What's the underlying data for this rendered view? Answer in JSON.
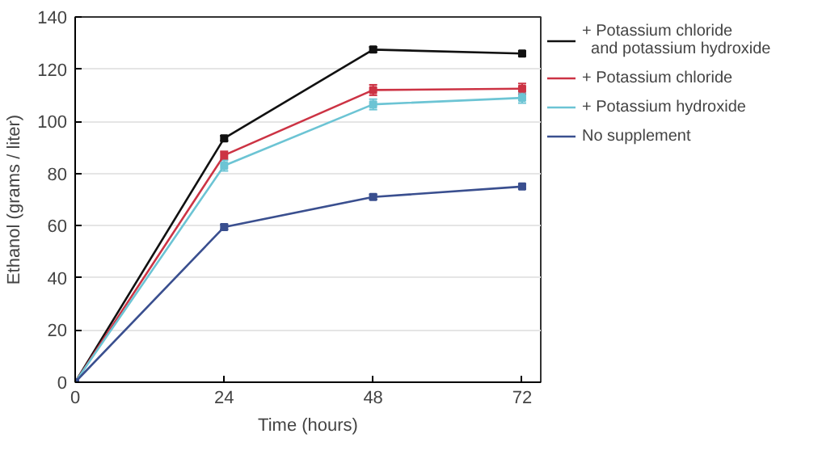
{
  "chart_data": {
    "type": "line",
    "xlabel": "Time (hours)",
    "ylabel": "Ethanol (grams / liter)",
    "x": [
      0,
      24,
      48,
      72
    ],
    "xlim": [
      0,
      75
    ],
    "xticks": [
      0,
      24,
      48,
      72
    ],
    "ylim": [
      0,
      140
    ],
    "yticks": [
      0,
      20,
      40,
      60,
      80,
      100,
      120,
      140
    ],
    "grid": "y",
    "legend": "right",
    "marker": "square",
    "line_style": "solid",
    "series": [
      {
        "name": "+ Potassium chloride\n  and potassium hydroxide",
        "color": "#111111",
        "values": [
          0,
          93.5,
          127.5,
          126
        ],
        "errors": [
          null,
          1,
          1,
          1
        ]
      },
      {
        "name": "+ Potassium chloride",
        "color": "#cc3344",
        "values": [
          0,
          87,
          112,
          112.5
        ],
        "errors": [
          null,
          1.5,
          2,
          2
        ]
      },
      {
        "name": "+ Potassium hydroxide",
        "color": "#6cc4d4",
        "values": [
          0,
          83,
          106.5,
          109
        ],
        "errors": [
          null,
          2,
          2,
          2
        ]
      },
      {
        "name": "No supplement",
        "color": "#3a4f8f",
        "values": [
          0,
          59.5,
          71,
          75
        ],
        "errors": [
          null,
          1,
          1,
          1
        ]
      }
    ]
  }
}
